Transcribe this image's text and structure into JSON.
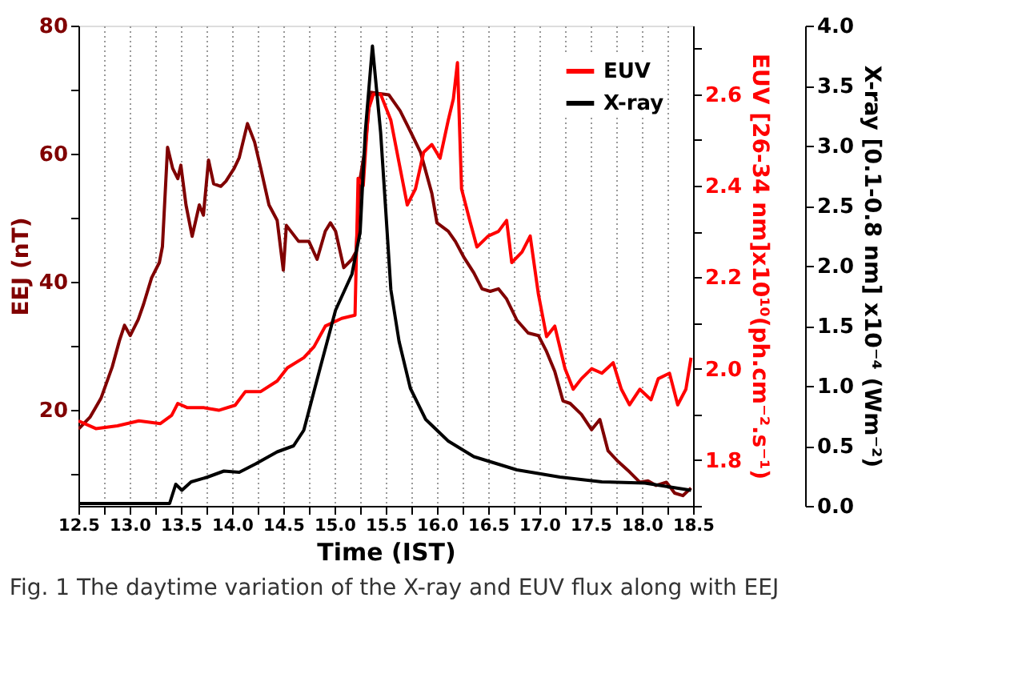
{
  "chart_data": {
    "type": "line",
    "xlabel": "Time (IST)",
    "ylabel": "EEJ (nT)",
    "y2label": "EUV [26-34 nm]x10¹⁰(ph.cm⁻².s⁻¹)",
    "y3label": "X-ray [0.1-0.8 nm] x10⁻⁴ (Wm⁻²)",
    "annotations": [
      "Fig. 1  The daytime variation of the X-ray and EUV flux along with EEJ"
    ],
    "xlim": [
      12.5,
      18.5
    ],
    "xticks": [
      {
        "value": 12.5,
        "label": "12.5"
      },
      {
        "value": 12.75,
        "label": null
      },
      {
        "value": 13,
        "label": "13.0"
      },
      {
        "value": 13.25,
        "label": null
      },
      {
        "value": 13.5,
        "label": "13.5"
      },
      {
        "value": 13.75,
        "label": null
      },
      {
        "value": 14,
        "label": "14.0"
      },
      {
        "value": 14.25,
        "label": null
      },
      {
        "value": 14.5,
        "label": "14.5"
      },
      {
        "value": 14.75,
        "label": null
      },
      {
        "value": 15,
        "label": "15.0"
      },
      {
        "value": 15.25,
        "label": null
      },
      {
        "value": 15.5,
        "label": "15.5"
      },
      {
        "value": 15.75,
        "label": null
      },
      {
        "value": 16,
        "label": "16.0"
      },
      {
        "value": 16.25,
        "label": null
      },
      {
        "value": 16.5,
        "label": "16.5"
      },
      {
        "value": 16.75,
        "label": null
      },
      {
        "value": 17,
        "label": "17.0"
      },
      {
        "value": 17.25,
        "label": null
      },
      {
        "value": 17.5,
        "label": "17.5"
      },
      {
        "value": 17.75,
        "label": null
      },
      {
        "value": 18,
        "label": "18.0"
      },
      {
        "value": 18.25,
        "label": null
      },
      {
        "value": 18.5,
        "label": "18.5"
      }
    ],
    "ylim": [
      5,
      80
    ],
    "yticks": [
      {
        "value": 10,
        "label": null
      },
      20,
      {
        "value": 30,
        "label": null
      },
      40,
      {
        "value": 50,
        "label": null
      },
      60,
      {
        "value": 70,
        "label": null
      },
      80
    ],
    "y2lim": [
      1.7,
      2.75
    ],
    "y2ticks": [
      {
        "value": 1.7,
        "label": null
      },
      1.8,
      {
        "value": 1.9,
        "label": null
      },
      {
        "value": 2.0,
        "label": "2.0"
      },
      {
        "value": 2.1,
        "label": null
      },
      2.2,
      {
        "value": 2.3,
        "label": null
      },
      2.4,
      {
        "value": 2.5,
        "label": null
      },
      2.6,
      {
        "value": 2.7,
        "label": null
      }
    ],
    "y3lim": [
      0,
      4
    ],
    "y3ticks": [
      {
        "value": 0,
        "label": "0.0"
      },
      0.5,
      {
        "value": 1,
        "label": "1.0"
      },
      1.5,
      {
        "value": 2,
        "label": "2.0"
      },
      2.5,
      {
        "value": 3,
        "label": "3.0"
      },
      3.5,
      {
        "value": 4,
        "label": "4.0"
      }
    ],
    "grid": "x",
    "legend": "top right",
    "marker": "none",
    "line_style": "solid",
    "series": [
      {
        "color": "#800000",
        "axis": "y",
        "x": [
          12.5,
          12.615,
          12.72,
          12.83,
          12.9,
          12.95,
          13.006,
          13.084,
          13.136,
          13.214,
          13.29,
          13.32,
          13.37,
          13.42,
          13.47,
          13.5,
          13.55,
          13.61,
          13.68,
          13.72,
          13.77,
          13.82,
          13.89,
          13.94,
          14.02,
          14.07,
          14.15,
          14.22,
          14.28,
          14.36,
          14.44,
          14.5,
          14.53,
          14.65,
          14.75,
          14.83,
          14.91,
          14.96,
          15.01,
          15.09,
          15.17,
          15.21,
          15.25,
          15.3,
          15.35,
          15.43,
          15.53,
          15.64,
          15.74,
          15.84,
          15.95,
          16.0,
          16.11,
          16.18,
          16.26,
          16.36,
          16.44,
          16.52,
          16.6,
          16.68,
          16.78,
          16.89,
          16.99,
          17.07,
          17.15,
          17.23,
          17.3,
          17.41,
          17.51,
          17.59,
          17.67,
          17.77,
          17.88,
          17.98,
          18.06,
          18.14,
          18.24,
          18.32,
          18.4,
          18.48
        ],
        "values": [
          17,
          18.9,
          21.8,
          26.7,
          30.8,
          33.2,
          31.6,
          34.1,
          36.5,
          40.6,
          43,
          45.5,
          61,
          57.7,
          56.1,
          58.2,
          52,
          47.1,
          52,
          50.4,
          59,
          55.3,
          54.9,
          55.7,
          57.7,
          59.4,
          64.7,
          61.8,
          57.7,
          52,
          49.6,
          41.8,
          48.8,
          46.3,
          46.3,
          43.5,
          47.9,
          49.2,
          47.9,
          42.2,
          43.5,
          44.7,
          56.1,
          61,
          69.6,
          69.4,
          69.2,
          66.7,
          63.5,
          60.2,
          53.8,
          49.2,
          47.9,
          46.3,
          43.9,
          41.4,
          38.9,
          38.5,
          38.9,
          37.3,
          34,
          32,
          31.6,
          29.1,
          26,
          21.4,
          21,
          19.3,
          16.9,
          18.5,
          13.6,
          11.9,
          10.3,
          8.7,
          8.9,
          8.2,
          8.7,
          7,
          6.6,
          7.8
        ]
      },
      {
        "name": "EUV",
        "color": "#ff0000",
        "axis": "y2",
        "x": [
          12.5,
          12.67,
          12.88,
          13.09,
          13.3,
          13.41,
          13.47,
          13.56,
          13.72,
          13.87,
          14.03,
          14.13,
          14.28,
          14.44,
          14.54,
          14.7,
          14.8,
          14.91,
          15.07,
          15.2,
          15.23,
          15.28,
          15.33,
          15.38,
          15.45,
          15.55,
          15.63,
          15.71,
          15.79,
          15.87,
          15.95,
          16.03,
          16.11,
          16.16,
          16.2,
          16.24,
          16.32,
          16.39,
          16.5,
          16.6,
          16.68,
          16.73,
          16.83,
          16.91,
          16.99,
          17.07,
          17.15,
          17.25,
          17.33,
          17.41,
          17.51,
          17.61,
          17.72,
          17.8,
          17.88,
          17.98,
          18.09,
          18.16,
          18.27,
          18.35,
          18.43,
          18.48
        ],
        "values": [
          1.886,
          1.869,
          1.875,
          1.886,
          1.88,
          1.898,
          1.924,
          1.915,
          1.915,
          1.909,
          1.92,
          1.95,
          1.95,
          1.973,
          2.002,
          2.024,
          2.048,
          2.093,
          2.11,
          2.117,
          2.416,
          2.4,
          2.566,
          2.6,
          2.6,
          2.543,
          2.45,
          2.358,
          2.393,
          2.473,
          2.49,
          2.46,
          2.543,
          2.59,
          2.669,
          2.393,
          2.324,
          2.266,
          2.29,
          2.3,
          2.324,
          2.232,
          2.255,
          2.29,
          2.163,
          2.07,
          2.093,
          2.0,
          1.955,
          1.978,
          2.0,
          1.99,
          2.013,
          1.955,
          1.921,
          1.955,
          1.932,
          1.978,
          1.99,
          1.921,
          1.955,
          2.024
        ]
      },
      {
        "name": "X-ray",
        "color": "#000000",
        "axis": "y3",
        "x": [
          12.5,
          13.39,
          13.45,
          13.51,
          13.6,
          13.76,
          13.92,
          14.07,
          14.23,
          14.44,
          14.6,
          14.7,
          14.86,
          15.01,
          15.17,
          15.25,
          15.3,
          15.37,
          15.45,
          15.5,
          15.55,
          15.63,
          15.74,
          15.89,
          16.11,
          16.36,
          16.78,
          17.2,
          17.61,
          18.03,
          18.48
        ],
        "values": [
          0.02,
          0.02,
          0.18,
          0.13,
          0.2,
          0.24,
          0.29,
          0.28,
          0.35,
          0.45,
          0.5,
          0.63,
          1.15,
          1.63,
          1.93,
          2.28,
          3.11,
          3.83,
          3.11,
          2.46,
          1.8,
          1.37,
          0.98,
          0.72,
          0.54,
          0.41,
          0.3,
          0.24,
          0.2,
          0.19,
          0.13
        ]
      }
    ]
  }
}
